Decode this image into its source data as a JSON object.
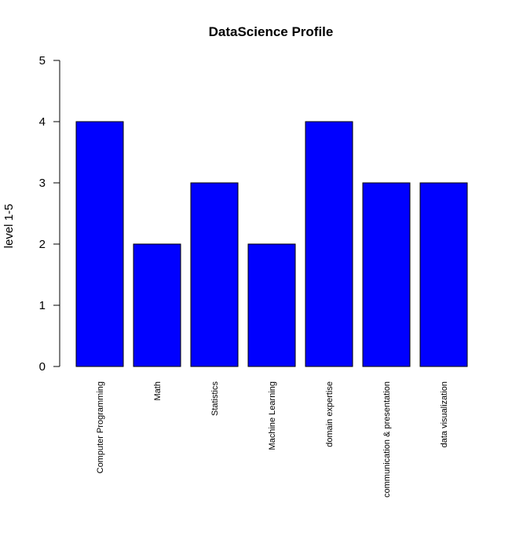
{
  "chart_data": {
    "type": "bar",
    "title": "DataScience Profile",
    "xlabel": "",
    "ylabel": "level 1-5",
    "categories": [
      "Computer Programming",
      "Math",
      "Statistics",
      "Machine Learning",
      "domain expertise",
      "communication & presentation",
      "data visualization"
    ],
    "values": [
      4,
      2,
      3,
      2,
      4,
      3,
      3
    ],
    "ylim": [
      0,
      5
    ],
    "yticks": [
      0,
      1,
      2,
      3,
      4,
      5
    ],
    "grid": false,
    "legend": "none",
    "bar_color": "#0000ff",
    "bar_edge_color": "#000000"
  }
}
